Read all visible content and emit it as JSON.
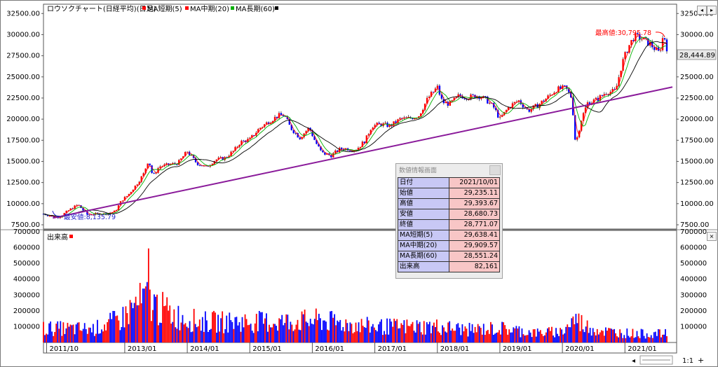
{
  "legend": {
    "title": "ロウソクチャート(日経平均)(日足)",
    "ma_short": "MA短期(5)",
    "ma_mid": "MA中期(20)",
    "ma_long": "MA長期(60)"
  },
  "colors": {
    "up": "#ff0000",
    "down": "#0000ff",
    "ma_short": "#ff0000",
    "ma_mid": "#00b000",
    "ma_long": "#000000",
    "trendline": "#8a1a9a",
    "high_label": "#ff0000",
    "low_label": "#2222cc"
  },
  "toolbar_icons": [
    "scroll-left-icon",
    "scroll-right-icon",
    "close-icon"
  ],
  "chart_data": [
    {
      "type": "candlestick",
      "title": "ロウソクチャート(日経平均)(日足)",
      "y_ticks": [
        "32500.00",
        "30000.00",
        "27500.00",
        "25000.00",
        "22500.00",
        "20000.00",
        "17500.00",
        "15000.00",
        "12500.00",
        "10000.00",
        "7500.00"
      ],
      "ylim": [
        7000,
        33600
      ],
      "x_ticks": [
        "2011/10",
        "2013/01",
        "2014/01",
        "2015/01",
        "2016/01",
        "2017/01",
        "2018/01",
        "2019/01",
        "2020/01",
        "2021/01"
      ],
      "x_tick_positions_years": [
        2011.75,
        2013.0,
        2014.0,
        2015.0,
        2016.0,
        2017.0,
        2018.0,
        2019.0,
        2020.0,
        2021.0
      ],
      "xlim_years": [
        2011.7,
        2021.67
      ],
      "last_price_label": "28,444.89",
      "high_annotation": "最高値:30,795.78",
      "low_annotation": "最安値:8,135.79",
      "grid": false,
      "close_series": {
        "x": [
          2011.7,
          2011.83,
          2011.95,
          2012.1,
          2012.25,
          2012.4,
          2012.55,
          2012.7,
          2012.85,
          2012.95,
          2013.05,
          2013.2,
          2013.3,
          2013.38,
          2013.45,
          2013.55,
          2013.7,
          2013.85,
          2014.0,
          2014.15,
          2014.3,
          2014.45,
          2014.6,
          2014.75,
          2014.85,
          2015.0,
          2015.15,
          2015.3,
          2015.45,
          2015.55,
          2015.65,
          2015.8,
          2015.95,
          2016.05,
          2016.15,
          2016.3,
          2016.45,
          2016.55,
          2016.7,
          2016.85,
          2016.95,
          2017.1,
          2017.25,
          2017.4,
          2017.55,
          2017.7,
          2017.85,
          2018.0,
          2018.08,
          2018.2,
          2018.35,
          2018.5,
          2018.65,
          2018.78,
          2018.9,
          2019.0,
          2019.15,
          2019.3,
          2019.45,
          2019.6,
          2019.75,
          2019.9,
          2020.05,
          2020.15,
          2020.21,
          2020.3,
          2020.4,
          2020.55,
          2020.7,
          2020.85,
          2020.95,
          2021.05,
          2021.15,
          2021.25,
          2021.4,
          2021.55,
          2021.62,
          2021.67
        ],
        "y": [
          8800,
          8500,
          8400,
          9200,
          9900,
          8700,
          8800,
          8800,
          9100,
          10400,
          11000,
          12400,
          13500,
          15200,
          13200,
          14400,
          14600,
          14800,
          16200,
          14800,
          14300,
          15200,
          15400,
          16300,
          17300,
          17600,
          18900,
          19700,
          20400,
          20500,
          19000,
          17800,
          19000,
          17300,
          16000,
          15700,
          16500,
          16500,
          16400,
          17500,
          19200,
          19400,
          19200,
          20000,
          20100,
          20400,
          22500,
          23800,
          22000,
          21800,
          22800,
          22600,
          22800,
          22300,
          21400,
          20000,
          21500,
          22200,
          21000,
          21600,
          22500,
          23500,
          23700,
          22500,
          17000,
          19900,
          21900,
          22300,
          23200,
          23300,
          26500,
          28500,
          29800,
          29600,
          28900,
          27800,
          30100,
          28444
        ]
      }
    },
    {
      "type": "bar",
      "title": "出来高",
      "y_ticks": [
        "700000",
        "600000",
        "500000",
        "400000",
        "300000",
        "200000",
        "100000"
      ],
      "ylim": [
        0,
        700000
      ],
      "volume_profile": {
        "x": [
          2011.7,
          2012.5,
          2012.95,
          2013.15,
          2013.35,
          2013.55,
          2013.8,
          2014.2,
          2014.8,
          2015.5,
          2016.1,
          2016.5,
          2017.0,
          2018.0,
          2018.5,
          2019.0,
          2019.6,
          2020.0,
          2020.2,
          2020.4,
          2020.7,
          2021.0,
          2021.3,
          2021.67
        ],
        "y": [
          90000,
          85000,
          150000,
          230000,
          270000,
          220000,
          170000,
          130000,
          130000,
          130000,
          140000,
          120000,
          100000,
          100000,
          80000,
          90000,
          60000,
          70000,
          150000,
          100000,
          70000,
          60000,
          55000,
          55000
        ]
      },
      "max_bar": {
        "x": 2013.38,
        "y": 595000
      }
    }
  ],
  "volume_label": "出来高",
  "info_panel": {
    "title": "数値情報画面",
    "rows": [
      {
        "label": "日付",
        "value": "2021/10/01"
      },
      {
        "label": "始値",
        "value": "29,235.11"
      },
      {
        "label": "高値",
        "value": "29,393.67"
      },
      {
        "label": "安値",
        "value": "28,680.73"
      },
      {
        "label": "終値",
        "value": "28,771.07"
      },
      {
        "label": "MA短期(5)",
        "value": "29,638.41"
      },
      {
        "label": "MA中期(20)",
        "value": "29,909.57"
      },
      {
        "label": "MA長期(60)",
        "value": "28,551.24"
      },
      {
        "label": "出来高",
        "value": "82,161"
      }
    ]
  },
  "trendline": {
    "start": {
      "x": 2011.85,
      "y": 8300
    },
    "end": {
      "x": 2021.67,
      "y": 23800
    }
  },
  "status": {
    "zoom": "1:1",
    "plus": "+",
    "slider_end": "◂"
  }
}
